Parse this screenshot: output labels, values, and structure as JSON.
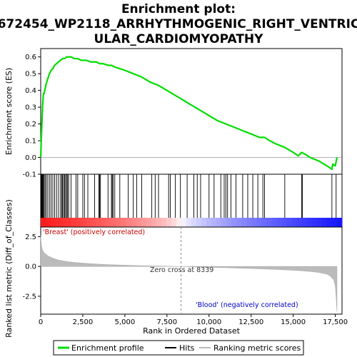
{
  "title_line1": "Enrichment plot:",
  "title_line2": "672454_WP2118_ARRHYTHMOGENIC_RIGHT_VENTRIC",
  "title_line3": "ULAR_CARDIOMYOPATHY",
  "top_ylabel": "Enrichment score (ES)",
  "bottom_ylabel": "Ranked list metric (Diff_of_Classes)",
  "xlabel": "Rank in Ordered Dataset",
  "positive_label": "'Breast' (positively correlated)",
  "negative_label": "'Blood' (negatively correlated)",
  "zero_cross_label": "Zero cross at 8339",
  "legend": {
    "enrichment": "Enrichment profile",
    "hits": "Hits",
    "ranking": "Ranking metric scores"
  },
  "colors": {
    "enrichment": "#00dd00",
    "hits": "#000000",
    "ranking": "#bbbbbb",
    "positive_text": "#cc0000",
    "negative_text": "#0000cc"
  },
  "chart_data": {
    "type": "line",
    "x_ticks": [
      0,
      2500,
      5000,
      7500,
      10000,
      12500,
      15000,
      17500
    ],
    "x_tick_labels": [
      "0",
      "2,500",
      "5,000",
      "7,500",
      "10,000",
      "12,500",
      "15,000",
      "17,500"
    ],
    "xlim": [
      0,
      17900
    ],
    "es_ylim": [
      -0.1,
      0.65
    ],
    "es_ticks": [
      -0.1,
      0.0,
      0.1,
      0.2,
      0.3,
      0.4,
      0.5,
      0.6
    ],
    "es_tick_labels": [
      "-0.1",
      "0.0",
      "0.1",
      "0.2",
      "0.3",
      "0.4",
      "0.5",
      "0.6"
    ],
    "metric_ylim": [
      -4.0,
      3.3
    ],
    "metric_ticks": [
      2.5,
      0.0,
      -2.5
    ],
    "metric_tick_labels": [
      "2.5",
      "0.0",
      "-2.5"
    ],
    "zero_cross": 8339,
    "enrichment_profile": {
      "x": [
        0,
        30,
        60,
        90,
        120,
        160,
        200,
        260,
        330,
        420,
        520,
        620,
        720,
        830,
        940,
        1060,
        1180,
        1300,
        1420,
        1540,
        1660,
        1800,
        2000,
        2200,
        2400,
        2700,
        3000,
        3300,
        3500,
        3700,
        4000,
        4200,
        4400,
        4700,
        5000,
        5500,
        6000,
        6500,
        7000,
        7500,
        8000,
        8500,
        9000,
        9500,
        10000,
        10500,
        11000,
        11500,
        12000,
        12500,
        13000,
        13300,
        13600,
        14000,
        14500,
        15000,
        15300,
        15500,
        15700,
        16000,
        16500,
        17000,
        17300,
        17350,
        17500,
        17600
      ],
      "y": [
        0.0,
        0.1,
        0.17,
        0.25,
        0.32,
        0.38,
        0.38,
        0.41,
        0.44,
        0.47,
        0.5,
        0.52,
        0.53,
        0.55,
        0.56,
        0.57,
        0.58,
        0.59,
        0.59,
        0.6,
        0.6,
        0.6,
        0.59,
        0.59,
        0.58,
        0.58,
        0.57,
        0.57,
        0.56,
        0.56,
        0.55,
        0.55,
        0.54,
        0.53,
        0.52,
        0.5,
        0.48,
        0.45,
        0.43,
        0.4,
        0.37,
        0.34,
        0.31,
        0.28,
        0.25,
        0.22,
        0.2,
        0.18,
        0.16,
        0.14,
        0.12,
        0.12,
        0.1,
        0.08,
        0.06,
        0.03,
        0.01,
        0.03,
        0.02,
        0.0,
        -0.02,
        -0.05,
        -0.07,
        -0.04,
        -0.05,
        0.0
      ]
    },
    "hits": [
      30,
      60,
      90,
      120,
      160,
      200,
      260,
      330,
      420,
      520,
      620,
      720,
      830,
      940,
      1060,
      1180,
      1250,
      1300,
      1360,
      1420,
      1480,
      1540,
      1600,
      1660,
      1800,
      2100,
      2200,
      2500,
      2600,
      2800,
      3200,
      3450,
      3500,
      3550,
      4000,
      4200,
      4250,
      4300,
      4400,
      4700,
      5200,
      5500,
      5700,
      6000,
      6600,
      6800,
      7000,
      7600,
      7700,
      8000,
      8300,
      8700,
      9100,
      9300,
      9500,
      10000,
      10300,
      10700,
      10900,
      11000,
      11100,
      11300,
      11600,
      12000,
      12300,
      12600,
      12900,
      13200,
      13300,
      14500,
      15500,
      15550,
      17300,
      17550
    ],
    "ranking_metric": {
      "x": [
        0,
        20,
        50,
        100,
        200,
        400,
        700,
        1000,
        1500,
        2000,
        3000,
        4000,
        5000,
        6000,
        7000,
        8339,
        9000,
        10000,
        11000,
        12000,
        13000,
        14000,
        15000,
        15500,
        16000,
        16500,
        17000,
        17200,
        17400,
        17500,
        17550,
        17600
      ],
      "y": [
        2.6,
        2.1,
        1.7,
        1.4,
        1.15,
        0.9,
        0.7,
        0.55,
        0.42,
        0.33,
        0.22,
        0.15,
        0.1,
        0.06,
        0.03,
        0.0,
        -0.03,
        -0.07,
        -0.11,
        -0.15,
        -0.2,
        -0.25,
        -0.32,
        -0.36,
        -0.42,
        -0.5,
        -0.65,
        -0.8,
        -1.1,
        -1.6,
        -2.5,
        -3.8
      ]
    }
  }
}
